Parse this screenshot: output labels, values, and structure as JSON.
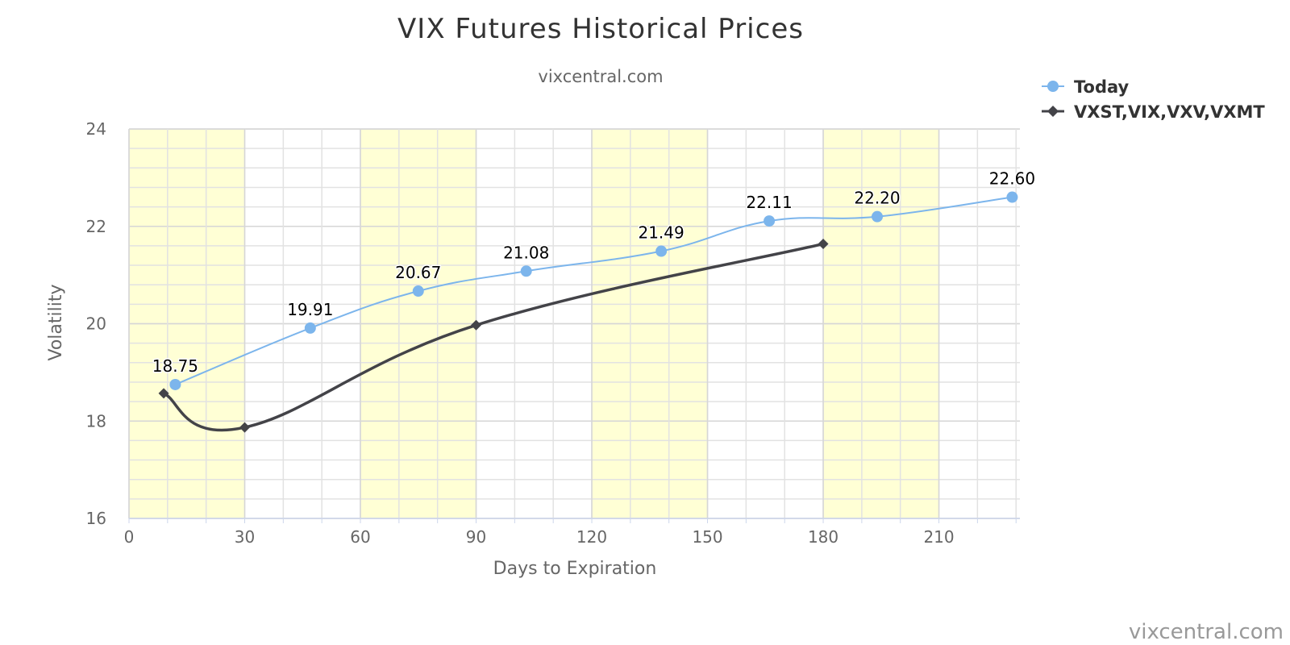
{
  "chart_data": {
    "type": "line",
    "title": "VIX Futures Historical Prices",
    "subtitle": "vixcentral.com",
    "xlabel": "Days to Expiration",
    "ylabel": "Volatility",
    "xlim": [
      0,
      231
    ],
    "ylim": [
      16,
      24
    ],
    "x_ticks": [
      0,
      30,
      60,
      90,
      120,
      150,
      180,
      210
    ],
    "y_ticks": [
      16,
      18,
      20,
      22,
      24
    ],
    "x_minor_step": 10,
    "y_minor_step": 0.4,
    "shaded_x_bands": [
      [
        0,
        30
      ],
      [
        60,
        90
      ],
      [
        120,
        150
      ],
      [
        180,
        210
      ]
    ],
    "band_color": "#ffffd5",
    "grid": true,
    "legend_position": "top-right",
    "series": [
      {
        "name": "Today",
        "color": "#7cb5ec",
        "marker": "circle",
        "show_data_labels": true,
        "x": [
          12,
          47,
          75,
          103,
          138,
          166,
          194,
          229
        ],
        "y": [
          18.75,
          19.91,
          20.67,
          21.08,
          21.49,
          22.11,
          22.2,
          22.6
        ],
        "labels": [
          "18.75",
          "19.91",
          "20.67",
          "21.08",
          "21.49",
          "22.11",
          "22.20",
          "22.60"
        ]
      },
      {
        "name": "VXST,VIX,VXV,VXMT",
        "color": "#434348",
        "marker": "diamond",
        "show_data_labels": false,
        "x": [
          9,
          30,
          90,
          180
        ],
        "y": [
          18.57,
          17.87,
          19.97,
          21.64
        ]
      }
    ],
    "credit": "vixcentral.com"
  }
}
